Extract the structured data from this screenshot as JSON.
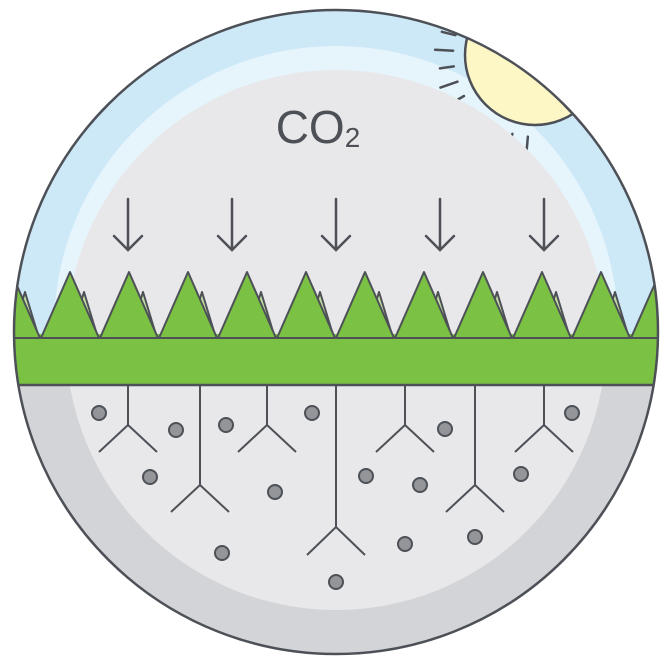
{
  "label": {
    "main": "CO",
    "subscript": "2"
  }
}
